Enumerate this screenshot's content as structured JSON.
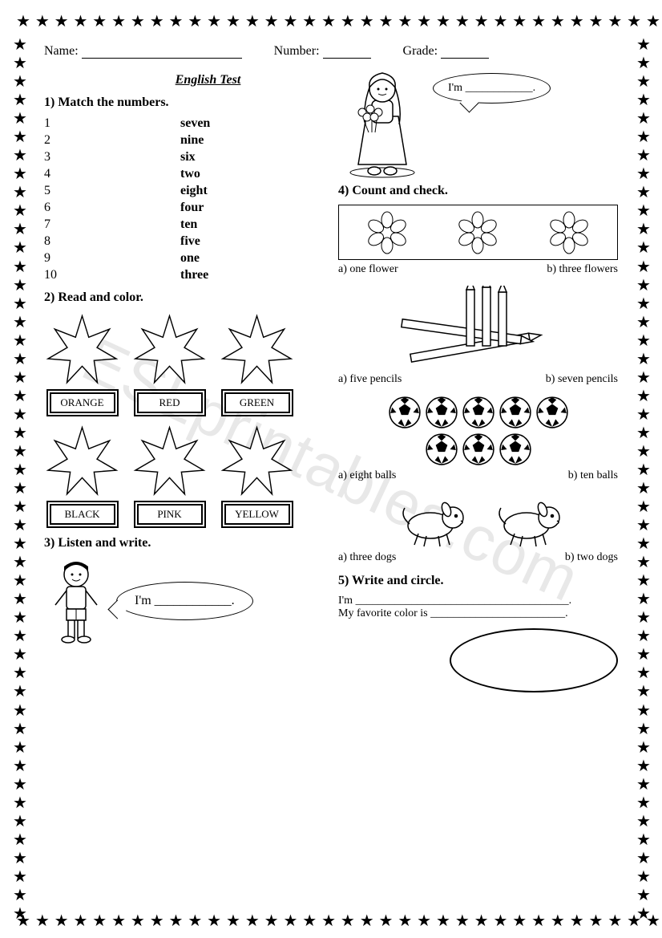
{
  "header": {
    "name_label": "Name:",
    "number_label": "Number:",
    "grade_label": "Grade:"
  },
  "title": "English Test",
  "q1": {
    "heading": "1) Match the numbers.",
    "left": [
      "1",
      "2",
      "3",
      "4",
      "5",
      "6",
      "7",
      "8",
      "9",
      "10"
    ],
    "right": [
      "seven",
      "nine",
      "six",
      "two",
      "eight",
      "four",
      "ten",
      "five",
      "one",
      "three"
    ]
  },
  "q2": {
    "heading": "2) Read and color.",
    "colors_row1": [
      "ORANGE",
      "RED",
      "GREEN"
    ],
    "colors_row2": [
      "BLACK",
      "PINK",
      "YELLOW"
    ]
  },
  "q3": {
    "heading": "3) Listen and write.",
    "bubble": "I'm ____________."
  },
  "q_girl_bubble": "I'm ____________.",
  "q4": {
    "heading": "4) Count and check.",
    "flowers": {
      "a": "a) one flower",
      "b": "b) three flowers"
    },
    "pencils": {
      "a": "a) five pencils",
      "b": "b) seven pencils"
    },
    "balls": {
      "a": "a) eight balls",
      "b": "b) ten balls"
    },
    "dogs": {
      "a": "a) three dogs",
      "b": "b) two dogs"
    }
  },
  "q5": {
    "heading": "5) Write and circle.",
    "line1": "I'm ______________________________________.",
    "line2": "My favorite color is ________________________."
  },
  "watermark": "ESLprintables.com",
  "style": {
    "star_points": 7,
    "star_stroke": "#000",
    "star_fill": "#fff",
    "border_star_count_h": 34,
    "border_star_count_v": 50
  }
}
